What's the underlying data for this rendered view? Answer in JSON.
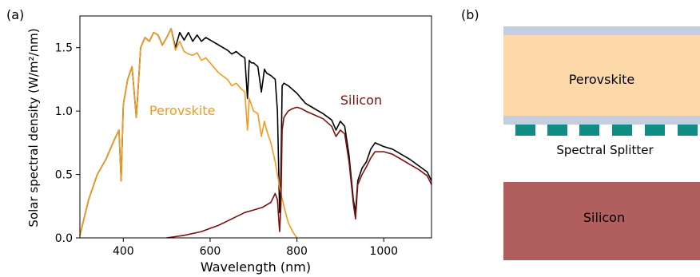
{
  "panel_a": {
    "label": "(a)"
  },
  "panel_b": {
    "label": "(b)",
    "layers": {
      "perovskite": "Perovskite",
      "splitter": "Spectral Splitter",
      "silicon": "Silicon"
    },
    "colors": {
      "glass": "#c3cfe0",
      "perovskite": "#fdd9aa",
      "splitter": "#0f8c86",
      "silicon": "#b15e5e"
    }
  },
  "chart_data": {
    "type": "line",
    "title": "",
    "xlabel": "Wavelength (nm)",
    "ylabel": "Solar spectral density (W/m²/nm)",
    "xlim": [
      300,
      1110
    ],
    "ylim": [
      0,
      1.75
    ],
    "xticks": [
      400,
      600,
      800,
      1000
    ],
    "yticks": [
      0.0,
      0.5,
      1.0,
      1.5
    ],
    "xtick_labels": [
      "400",
      "600",
      "800",
      "1000"
    ],
    "ytick_labels": [
      "0.0",
      "0.5",
      "1.0",
      "1.5"
    ],
    "grid": false,
    "legend": "none",
    "annotations": [
      {
        "text": "Perovskite",
        "x": 460,
        "y": 0.97,
        "color": "#f39a1e"
      },
      {
        "text": "Silicon",
        "x": 900,
        "y": 1.05,
        "color": "#7e1010"
      }
    ],
    "series": [
      {
        "name": "",
        "color": "#000000",
        "x": [
          300,
          320,
          340,
          360,
          380,
          390,
          395,
          400,
          410,
          420,
          430,
          440,
          450,
          460,
          470,
          480,
          490,
          500,
          510,
          520,
          530,
          540,
          550,
          560,
          570,
          580,
          590,
          600,
          620,
          640,
          650,
          660,
          670,
          680,
          686,
          690,
          695,
          700,
          710,
          718,
          725,
          730,
          740,
          750,
          755,
          760,
          763,
          766,
          770,
          780,
          790,
          800,
          810,
          820,
          840,
          860,
          880,
          890,
          900,
          910,
          920,
          930,
          935,
          940,
          950,
          960,
          970,
          980,
          1000,
          1020,
          1040,
          1060,
          1080,
          1100,
          1110
        ],
        "y": [
          0.02,
          0.3,
          0.5,
          0.62,
          0.78,
          0.85,
          0.45,
          1.05,
          1.25,
          1.35,
          0.95,
          1.5,
          1.58,
          1.55,
          1.62,
          1.6,
          1.52,
          1.58,
          1.65,
          1.5,
          1.62,
          1.56,
          1.62,
          1.55,
          1.6,
          1.55,
          1.58,
          1.56,
          1.52,
          1.48,
          1.45,
          1.47,
          1.44,
          1.42,
          1.1,
          1.4,
          1.38,
          1.38,
          1.35,
          1.15,
          1.33,
          1.3,
          1.28,
          1.25,
          1.0,
          0.2,
          0.5,
          1.2,
          1.22,
          1.2,
          1.17,
          1.14,
          1.1,
          1.06,
          1.02,
          0.98,
          0.93,
          0.85,
          0.92,
          0.88,
          0.65,
          0.3,
          0.2,
          0.45,
          0.55,
          0.6,
          0.7,
          0.75,
          0.72,
          0.7,
          0.66,
          0.62,
          0.57,
          0.52,
          0.45
        ]
      },
      {
        "name": "Perovskite",
        "color": "#f39a1e",
        "x": [
          300,
          320,
          340,
          360,
          380,
          390,
          395,
          400,
          410,
          420,
          430,
          440,
          450,
          460,
          470,
          480,
          490,
          500,
          510,
          520,
          530,
          540,
          550,
          560,
          570,
          580,
          590,
          600,
          620,
          640,
          650,
          660,
          670,
          680,
          686,
          690,
          695,
          700,
          710,
          718,
          725,
          730,
          740,
          750,
          760,
          770,
          780,
          790,
          800
        ],
        "y": [
          0.02,
          0.3,
          0.5,
          0.62,
          0.78,
          0.85,
          0.45,
          1.05,
          1.25,
          1.35,
          0.95,
          1.5,
          1.58,
          1.55,
          1.62,
          1.6,
          1.52,
          1.58,
          1.65,
          1.48,
          1.55,
          1.47,
          1.45,
          1.44,
          1.46,
          1.4,
          1.42,
          1.38,
          1.3,
          1.25,
          1.2,
          1.22,
          1.18,
          1.15,
          0.85,
          1.1,
          1.05,
          1.0,
          0.98,
          0.8,
          0.92,
          0.85,
          0.75,
          0.6,
          0.4,
          0.25,
          0.12,
          0.05,
          0.0
        ]
      },
      {
        "name": "Silicon",
        "color": "#7e1010",
        "x": [
          500,
          540,
          580,
          620,
          650,
          680,
          700,
          720,
          740,
          750,
          755,
          760,
          763,
          766,
          770,
          780,
          790,
          800,
          810,
          820,
          840,
          860,
          880,
          890,
          900,
          910,
          920,
          930,
          935,
          940,
          950,
          960,
          970,
          980,
          1000,
          1020,
          1040,
          1060,
          1080,
          1100,
          1110
        ],
        "y": [
          0.0,
          0.02,
          0.05,
          0.1,
          0.15,
          0.2,
          0.22,
          0.24,
          0.28,
          0.35,
          0.3,
          0.05,
          0.25,
          0.85,
          0.95,
          1.0,
          1.02,
          1.03,
          1.02,
          1.0,
          0.97,
          0.94,
          0.88,
          0.8,
          0.85,
          0.82,
          0.6,
          0.27,
          0.15,
          0.42,
          0.5,
          0.56,
          0.63,
          0.68,
          0.68,
          0.66,
          0.62,
          0.58,
          0.54,
          0.49,
          0.42
        ]
      }
    ]
  }
}
